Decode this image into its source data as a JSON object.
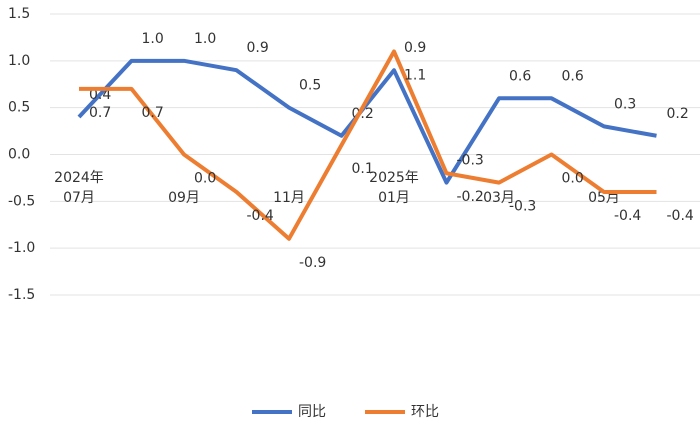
{
  "chart_data": {
    "type": "line",
    "categories": [
      "2024年\n07月",
      null,
      "09月",
      null,
      "11月",
      null,
      "2025年\n01月",
      null,
      "03月",
      null,
      "05月",
      null
    ],
    "series": [
      {
        "name": "同比",
        "color": "#4472c4",
        "values": [
          0.4,
          1.0,
          1.0,
          0.9,
          0.5,
          0.2,
          0.9,
          -0.3,
          0.6,
          0.6,
          0.3,
          0.2
        ],
        "value_labels": [
          "0.4",
          "1.0",
          "1.0",
          "0.9",
          "0.5",
          "0.2",
          "0.9",
          "-0.3",
          "0.6",
          "0.6",
          "0.3",
          "0.2"
        ]
      },
      {
        "name": "环比",
        "color": "#ed7d31",
        "values": [
          0.7,
          0.7,
          0.0,
          -0.4,
          -0.9,
          0.1,
          1.1,
          -0.2,
          -0.3,
          0.0,
          -0.4,
          -0.4
        ],
        "value_labels": [
          "0.7",
          "0.7",
          "0.0",
          "-0.4",
          "-0.9",
          "0.1",
          "1.1",
          "-0.2",
          "-0.3",
          "0.0",
          "-0.4",
          "-0.4"
        ]
      }
    ],
    "ylim": [
      -1.5,
      1.5
    ],
    "yticks": [
      -1.5,
      {
        "value": -1,
        "label": "-1.0"
      },
      -0.5,
      {
        "value": 0,
        "label": "0.0"
      },
      0.5,
      {
        "value": 1,
        "label": "1.0"
      },
      1.5
    ],
    "grid": true,
    "legend": "bottom"
  }
}
